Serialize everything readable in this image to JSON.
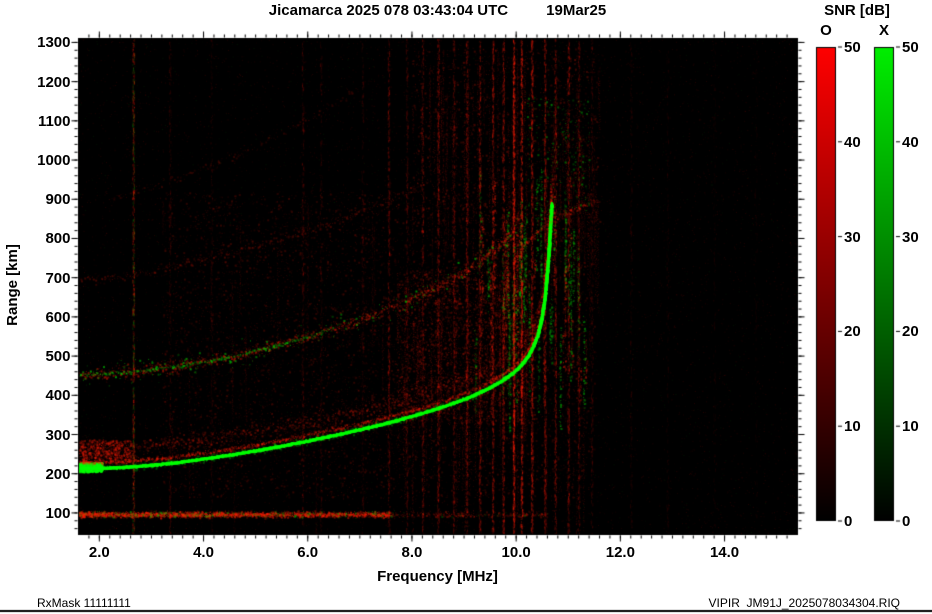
{
  "chart_data": {
    "type": "heatmap",
    "title": "Jicamarca 2025 078 03:43:04 UTC",
    "date_label": "19Mar25",
    "xlabel": "Frequency [MHz]",
    "ylabel": "Range [km]",
    "xlim": [
      1.6,
      15.4
    ],
    "ylim": [
      45,
      1310
    ],
    "x_minor_step": 0.2,
    "y_minor_step": 20,
    "x_ticks": [
      {
        "v": 2,
        "label": "2.0"
      },
      {
        "v": 4,
        "label": "4.0"
      },
      {
        "v": 6,
        "label": "6.0"
      },
      {
        "v": 8,
        "label": "8.0"
      },
      {
        "v": 10,
        "label": "10.0"
      },
      {
        "v": 12,
        "label": "12.0"
      },
      {
        "v": 14,
        "label": "14.0"
      }
    ],
    "y_ticks": [
      {
        "v": 100,
        "label": "100"
      },
      {
        "v": 200,
        "label": "200"
      },
      {
        "v": 300,
        "label": "300"
      },
      {
        "v": 400,
        "label": "400"
      },
      {
        "v": 500,
        "label": "500"
      },
      {
        "v": 600,
        "label": "600"
      },
      {
        "v": 700,
        "label": "700"
      },
      {
        "v": 800,
        "label": "800"
      },
      {
        "v": 900,
        "label": "900"
      },
      {
        "v": 1000,
        "label": "1000"
      },
      {
        "v": 1100,
        "label": "1100"
      },
      {
        "v": 1200,
        "label": "1200"
      },
      {
        "v": 1300,
        "label": "1300"
      }
    ],
    "colorbar": {
      "title": "SNR [dB]",
      "min": 0,
      "max": 50,
      "ticks": [
        0,
        10,
        20,
        30,
        40,
        50
      ],
      "bars": [
        {
          "label": "O",
          "color": "#ff0000"
        },
        {
          "label": "X",
          "color": "#00ee00"
        }
      ]
    },
    "footer_left": "RxMask 11111111",
    "footer_right": "VIPIR  JM91J_2025078034304.RIQ",
    "colors": {
      "plot_bg": "#000000",
      "o_mode": "#ff1e00",
      "x_mode": "#00cc00"
    },
    "trace_points": {
      "hop1": [
        [
          1.62,
          216
        ],
        [
          2.0,
          216
        ],
        [
          2.5,
          219
        ],
        [
          3.0,
          224
        ],
        [
          3.5,
          231
        ],
        [
          4.0,
          240
        ],
        [
          4.5,
          250
        ],
        [
          5.0,
          261
        ],
        [
          5.5,
          273
        ],
        [
          6.0,
          286
        ],
        [
          6.5,
          300
        ],
        [
          7.0,
          315
        ],
        [
          7.5,
          331
        ],
        [
          8.0,
          349
        ],
        [
          8.4,
          365
        ],
        [
          8.8,
          383
        ],
        [
          9.1,
          398
        ],
        [
          9.4,
          416
        ],
        [
          9.7,
          438
        ],
        [
          9.9,
          456
        ],
        [
          10.05,
          474
        ],
        [
          10.2,
          498
        ],
        [
          10.3,
          522
        ],
        [
          10.4,
          556
        ],
        [
          10.48,
          600
        ],
        [
          10.54,
          650
        ],
        [
          10.58,
          710
        ],
        [
          10.62,
          780
        ],
        [
          10.65,
          850
        ],
        [
          10.67,
          892
        ]
      ],
      "hop2": [
        [
          1.62,
          452
        ],
        [
          2.0,
          455
        ],
        [
          2.5,
          460
        ],
        [
          3.0,
          467
        ],
        [
          3.5,
          476
        ],
        [
          4.0,
          487
        ],
        [
          4.5,
          500
        ],
        [
          5.0,
          515
        ],
        [
          5.5,
          532
        ],
        [
          6.0,
          551
        ],
        [
          6.5,
          572
        ],
        [
          7.0,
          595
        ],
        [
          7.5,
          620
        ],
        [
          8.0,
          648
        ],
        [
          8.4,
          672
        ],
        [
          8.8,
          700
        ],
        [
          9.1,
          724
        ],
        [
          9.4,
          752
        ],
        [
          9.6,
          775
        ],
        [
          9.8,
          800
        ],
        [
          9.95,
          826
        ],
        [
          10.05,
          852
        ]
      ],
      "hop3": [
        [
          1.62,
          690
        ],
        [
          2.5,
          706
        ],
        [
          3.5,
          732
        ],
        [
          4.5,
          764
        ],
        [
          5.5,
          802
        ],
        [
          6.5,
          846
        ],
        [
          7.5,
          896
        ],
        [
          8.2,
          942
        ]
      ],
      "hop4": [
        [
          2.2,
          905
        ],
        [
          3.2,
          940
        ],
        [
          4.2,
          990
        ],
        [
          5.2,
          1050
        ],
        [
          6.2,
          1120
        ],
        [
          7.0,
          1190
        ]
      ],
      "top_arc": [
        [
          9.95,
          745
        ],
        [
          10.2,
          792
        ],
        [
          10.5,
          832
        ],
        [
          10.85,
          862
        ],
        [
          11.2,
          882
        ],
        [
          11.6,
          895
        ]
      ]
    },
    "echo_traces": [
      {
        "name": "hop1-green-glow",
        "color": "#00cc00",
        "points": "hop1",
        "width_km": 26,
        "density": 2.2,
        "alpha": [
          0.08,
          0.4
        ]
      },
      {
        "name": "hop1-red-halo",
        "color": "#ff1e00",
        "points": "hop1",
        "offset_km": 48,
        "width_km": 70,
        "density": 2.6,
        "alpha": [
          0.05,
          0.3
        ]
      },
      {
        "name": "hop1-red-edge",
        "color": "#ff1e00",
        "points": "hop1",
        "offset_km": 14,
        "width_km": 16,
        "density": 2.2,
        "alpha": [
          0.1,
          0.5
        ]
      },
      {
        "name": "hop1-core",
        "color": "#00ff00",
        "points": "hop1",
        "width_km": 8,
        "density": 6,
        "alpha": [
          0.45,
          1
        ],
        "size": 2
      },
      {
        "name": "hop2-red",
        "color": "#ff1e00",
        "points": "hop2",
        "width_km": 46,
        "density": 2.4,
        "alpha": [
          0.06,
          0.42
        ]
      },
      {
        "name": "hop2-green-speckle",
        "color": "#00dd00",
        "points": "hop2",
        "width_km": 90,
        "density": 0.45,
        "alpha": [
          0.12,
          0.65
        ]
      },
      {
        "name": "hop2-green-line",
        "color": "#00dd00",
        "points": "hop2",
        "width_km": 12,
        "density": 0.9,
        "alpha": [
          0.15,
          0.6
        ],
        "f_range": [
          1.6,
          6.5
        ]
      },
      {
        "name": "hop3-red-faint",
        "color": "#ff1e00",
        "points": "hop3",
        "width_km": 36,
        "density": 1.0,
        "alpha": [
          0.05,
          0.26
        ]
      },
      {
        "name": "hop4-red-faint",
        "color": "#ff1e00",
        "points": "hop4",
        "width_km": 34,
        "density": 0.6,
        "alpha": [
          0.04,
          0.2
        ]
      },
      {
        "name": "top-arc-red",
        "color": "#ff1e00",
        "points": "top_arc",
        "width_km": 26,
        "density": 2.0,
        "alpha": [
          0.07,
          0.36
        ]
      }
    ],
    "rfi_lines": [
      {
        "f": 2.65,
        "color": "#ff1e00",
        "alpha": 0.3,
        "count": 500
      },
      {
        "f": 2.65,
        "color": "#00cc00",
        "alpha": 0.2,
        "count": 260
      },
      {
        "f": 3.35,
        "color": "#ff1e00",
        "alpha": 0.14,
        "count": 260
      },
      {
        "f": 4.15,
        "color": "#ff1e00",
        "alpha": 0.1,
        "count": 200
      },
      {
        "f": 5.9,
        "color": "#ff1e00",
        "alpha": 0.16,
        "count": 300
      },
      {
        "f": 6.25,
        "color": "#ff1e00",
        "alpha": 0.12,
        "count": 240
      },
      {
        "f": 7.05,
        "color": "#ff1e00",
        "alpha": 0.12,
        "count": 240
      },
      {
        "f": 7.55,
        "color": "#ff1e00",
        "alpha": 0.22,
        "count": 420
      },
      {
        "f": 7.9,
        "color": "#ff1e00",
        "alpha": 0.18,
        "count": 360
      },
      {
        "f": 8.2,
        "color": "#ff1e00",
        "alpha": 0.22,
        "count": 420
      },
      {
        "f": 8.5,
        "color": "#ff1e00",
        "alpha": 0.26,
        "count": 500
      },
      {
        "f": 8.8,
        "color": "#ff1e00",
        "alpha": 0.22,
        "count": 420
      },
      {
        "f": 9.05,
        "color": "#ff1e00",
        "alpha": 0.26,
        "count": 500
      },
      {
        "f": 9.3,
        "color": "#ff1e00",
        "alpha": 0.28,
        "count": 520
      },
      {
        "f": 9.55,
        "color": "#ff1e00",
        "alpha": 0.3,
        "count": 560
      },
      {
        "f": 9.75,
        "color": "#ff1e00",
        "alpha": 0.3,
        "count": 560
      },
      {
        "f": 9.95,
        "color": "#ff1e00",
        "alpha": 0.45,
        "count": 800
      },
      {
        "f": 10.1,
        "color": "#ff1e00",
        "alpha": 0.4,
        "count": 700
      },
      {
        "f": 10.3,
        "color": "#ff1e00",
        "alpha": 0.34,
        "count": 620
      },
      {
        "f": 10.55,
        "color": "#ff1e00",
        "alpha": 0.3,
        "count": 560
      },
      {
        "f": 10.75,
        "color": "#ff1e00",
        "alpha": 0.28,
        "count": 520
      },
      {
        "f": 11.0,
        "color": "#ff1e00",
        "alpha": 0.26,
        "count": 480
      },
      {
        "f": 11.2,
        "color": "#ff1e00",
        "alpha": 0.22,
        "count": 420
      },
      {
        "f": 11.45,
        "color": "#ff1e00",
        "alpha": 0.14,
        "count": 280
      },
      {
        "f": 12.2,
        "color": "#ff1e00",
        "alpha": 0.1,
        "count": 200
      },
      {
        "f": 12.9,
        "color": "#ff1e00",
        "alpha": 0.08,
        "count": 160
      },
      {
        "f": 13.8,
        "color": "#ff1e00",
        "alpha": 0.07,
        "count": 140
      },
      {
        "f": 14.6,
        "color": "#ff1e00",
        "alpha": 0.06,
        "count": 120
      }
    ],
    "regions": {
      "background": {
        "red_count": 8000,
        "red_alpha": [
          0.03,
          0.15
        ],
        "green_count": 1400,
        "green_alpha": [
          0.03,
          0.12
        ]
      },
      "mid_diffuse": {
        "f": [
          3.2,
          11.5
        ],
        "r": [
          140,
          920
        ],
        "count": 6000,
        "alpha": [
          0.04,
          0.2
        ],
        "color": "#ff1e00",
        "streaks": 30
      },
      "prefof2_spread": {
        "f": [
          7.7,
          10.35
        ],
        "r": [
          330,
          720
        ],
        "count": 2400,
        "alpha": [
          0.05,
          0.28
        ],
        "color": "#ff1e00",
        "streaks": 50
      },
      "top_diffuse": {
        "f": [
          8.0,
          11.6
        ],
        "r": [
          840,
          1285
        ],
        "count": 1400,
        "alpha": [
          0.04,
          0.24
        ],
        "color": "#ff1e00",
        "streaks": 80
      },
      "high_green": {
        "f": [
          10.2,
          11.4
        ],
        "r": [
          860,
          1160
        ],
        "count": 220,
        "alpha": [
          0.1,
          0.5
        ],
        "color": "#00cc00"
      },
      "cusp_spread": {
        "f": [
          9.2,
          11.35
        ],
        "r": [
          430,
          860
        ],
        "columns": 70,
        "green_fraction": 0.55,
        "alpha": [
          0.08,
          0.5
        ]
      },
      "e_layer": {
        "f": [
          1.6,
          7.6
        ],
        "r_center": 97,
        "r_sigma": 11,
        "count": 3000,
        "green_fraction": 0.16,
        "alpha": [
          0.1,
          0.5
        ]
      },
      "e_layer_ext": {
        "f": [
          7.6,
          10.6
        ],
        "r_center": 97,
        "r_sigma": 11,
        "count": 320,
        "green_fraction": 0.1,
        "alpha": [
          0.05,
          0.3
        ]
      },
      "start_blob_green": {
        "f": [
          1.6,
          2.05
        ],
        "r": [
          206,
          230
        ],
        "count": 800,
        "alpha": [
          0.35,
          1
        ],
        "color": "#00ff00"
      },
      "start_blob_red": {
        "f": [
          1.6,
          2.6
        ],
        "r": [
          228,
          288
        ],
        "count": 700,
        "alpha": [
          0.1,
          0.45
        ],
        "color": "#ff1e00"
      }
    }
  }
}
